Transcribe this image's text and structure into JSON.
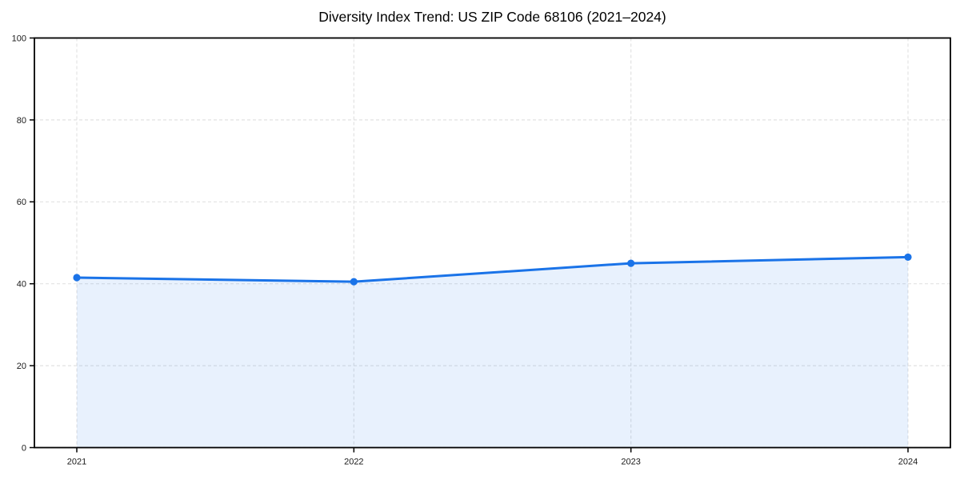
{
  "chart_data": {
    "type": "line",
    "title": "Diversity Index Trend: US ZIP Code 68106 (2021–2024)",
    "categories": [
      "2021",
      "2022",
      "2023",
      "2024"
    ],
    "values": [
      41.5,
      40.5,
      45.0,
      46.5
    ],
    "series_name": "Diversity Index",
    "xlabel": "",
    "ylabel": "",
    "ylim": [
      0,
      100
    ],
    "yticks": [
      0,
      20,
      40,
      60,
      80,
      100
    ],
    "grid": true,
    "grid_style": "dashed",
    "legend": "none",
    "area_fill": true,
    "marker": "circle",
    "colors": {
      "line": "#1a73e8",
      "marker": "#1a73e8",
      "area_fill": "rgba(26,115,232,0.10)",
      "grid": "#e2e2e2",
      "axis": "#000000",
      "tick_text": "#1a1a1a",
      "background": "#ffffff",
      "title_text": "#000000"
    }
  }
}
